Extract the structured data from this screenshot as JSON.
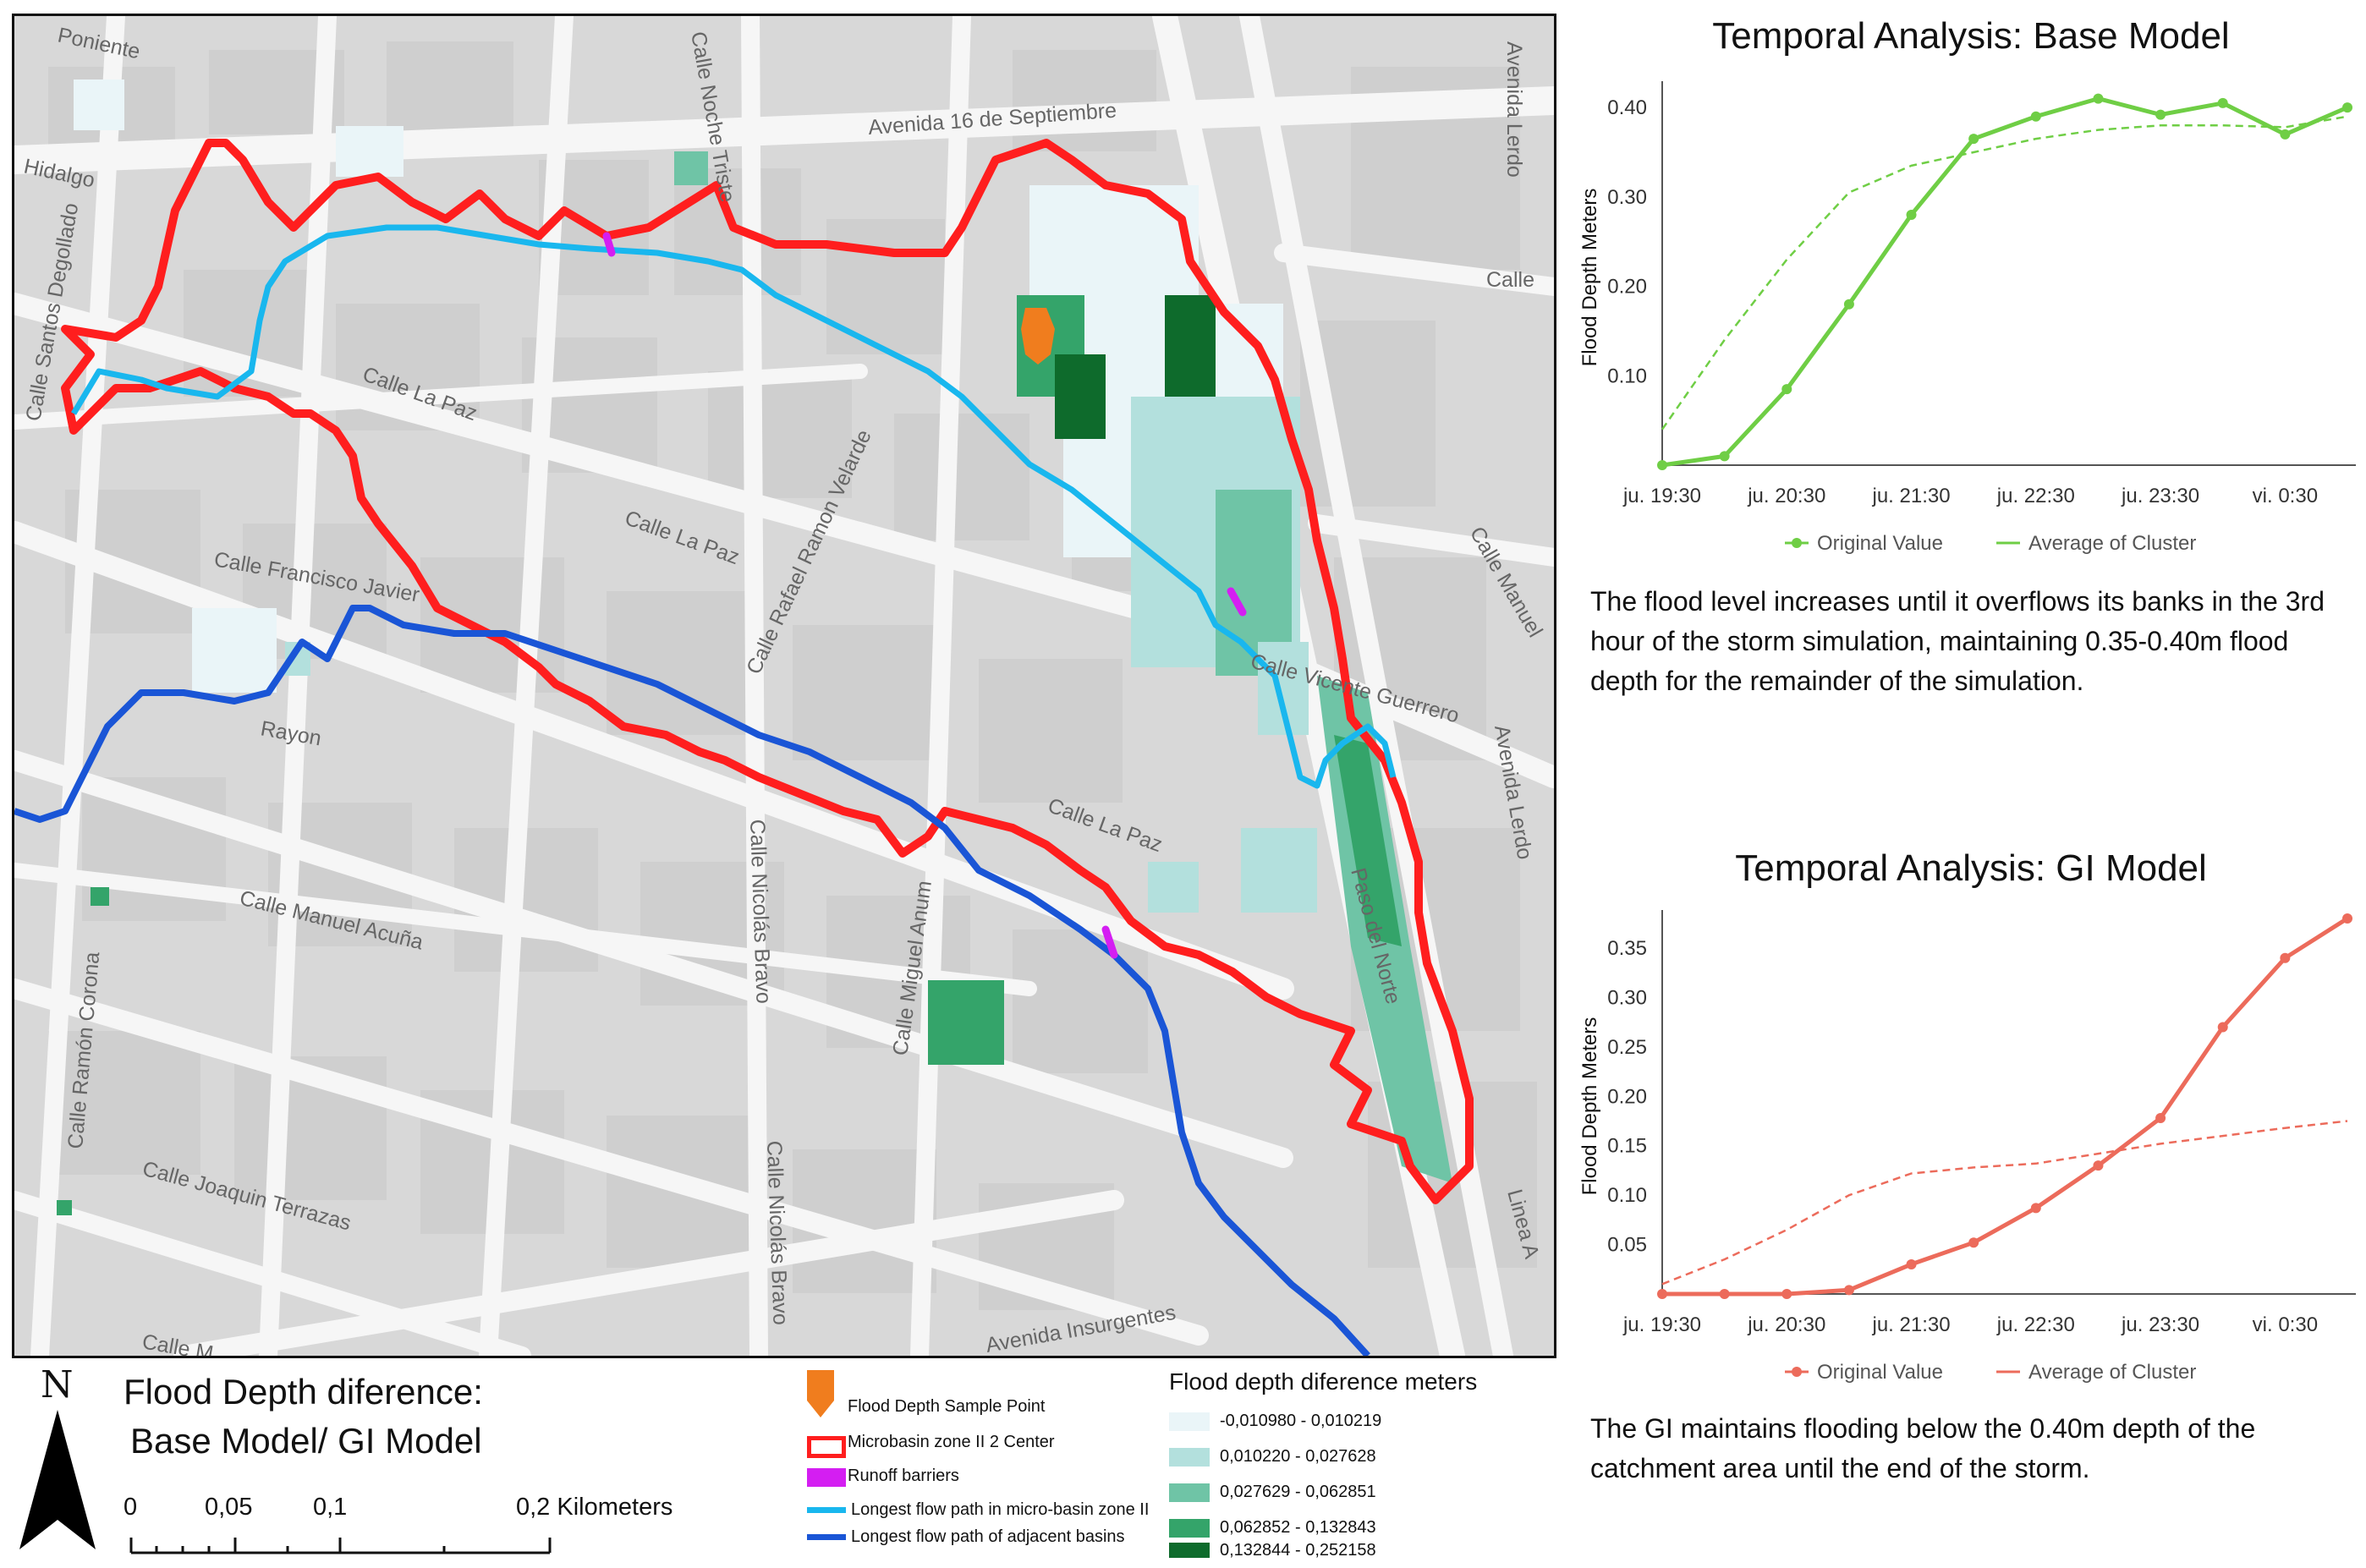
{
  "map": {
    "streets": [
      {
        "name": "Poniente"
      },
      {
        "name": "Calle Noche Triste"
      },
      {
        "name": "Avenida 16 de Septiembre"
      },
      {
        "name": "Avenida Lerdo"
      },
      {
        "name": "Hidalgo"
      },
      {
        "name": "Calle"
      },
      {
        "name": "Calle Santos Degollado"
      },
      {
        "name": "Calle La Paz"
      },
      {
        "name": "Calle La Paz"
      },
      {
        "name": "Calle Rafael Ramon Velarde"
      },
      {
        "name": "Calle Francisco Javier"
      },
      {
        "name": "Calle Vicente Guerrero"
      },
      {
        "name": "Calle Manuel"
      },
      {
        "name": "Rayon"
      },
      {
        "name": "Avenida Lerdo"
      },
      {
        "name": "Calle La Paz"
      },
      {
        "name": "Calle Manuel Acuña"
      },
      {
        "name": "Calle Nicolás Bravo"
      },
      {
        "name": "Calle Miguel Anum"
      },
      {
        "name": "Paso del Norte"
      },
      {
        "name": "Calle Ramón Corona"
      },
      {
        "name": "Calle Nicolás Bravo"
      },
      {
        "name": "Calle Joaquin Terrazas"
      },
      {
        "name": "Linea A"
      },
      {
        "name": "Avenida Insurgentes"
      },
      {
        "name": "Calle M"
      }
    ],
    "title_line1": "Flood Depth diference:",
    "title_line2": "Base Model/ GI Model",
    "north_letter": "N",
    "scale": {
      "labels": [
        "0",
        "0,05",
        "0,1",
        "0,2 Kilometers"
      ]
    }
  },
  "legend": {
    "items": [
      {
        "label": "Flood Depth Sample Point",
        "color": "#f07d1e"
      },
      {
        "label": "Microbasin zone II 2 Center",
        "color": "#ff1e1e"
      },
      {
        "label": "Runoff barriers",
        "color": "#d41ef2"
      },
      {
        "label": "Longest flow path in micro-basin zone II",
        "color": "#19b7ee"
      },
      {
        "label": "Longest flow path of adjacent basins",
        "color": "#1a55d6"
      }
    ],
    "depth_title": "Flood depth diference meters",
    "depth_classes": [
      {
        "label": "-0,010980 - 0,010219",
        "color": "#eaf5f8"
      },
      {
        "label": "0,010220 - 0,027628",
        "color": "#b3e0dd"
      },
      {
        "label": "0,027629 - 0,062851",
        "color": "#6fc4a6"
      },
      {
        "label": "0,062852 - 0,132843",
        "color": "#34a46a"
      },
      {
        "label": "0,132844 - 0,252158",
        "color": "#0e6b2c"
      }
    ]
  },
  "base_panel": {
    "title": "Temporal Analysis: Base Model",
    "description": "The flood level increases until it overflows its banks in the 3rd hour of the storm simulation, maintaining 0.35-0.40m flood depth for the remainder of the simulation."
  },
  "gi_panel": {
    "title": "Temporal Analysis: GI Model",
    "description": "The GI maintains flooding below the 0.40m depth of the catchment area until the end of the storm."
  },
  "chart_data": [
    {
      "type": "line",
      "title": "Temporal Analysis: Base Model",
      "ylabel": "Flood Depth Meters",
      "xlabel": "",
      "x_tick_labels": [
        "ju. 19:30",
        "ju. 20:30",
        "ju. 21:30",
        "ju. 22:30",
        "ju. 23:30",
        "vi. 0:30"
      ],
      "y_ticks": [
        0.1,
        0.2,
        0.3,
        0.4
      ],
      "y_tick_labels": [
        "0.10",
        "0.20",
        "0.30",
        "0.40"
      ],
      "ylim": [
        0,
        0.42
      ],
      "x_hours": [
        0,
        0.5,
        1,
        1.5,
        2,
        2.5,
        3,
        3.5,
        4,
        4.5,
        5,
        5.5
      ],
      "series": [
        {
          "name": "Original Value",
          "style": "solid-markers",
          "color": "#6fce45",
          "values": [
            0.0,
            0.01,
            0.085,
            0.18,
            0.28,
            0.365,
            0.39,
            0.41,
            0.392,
            0.405,
            0.37,
            0.4
          ]
        },
        {
          "name": "Average of Cluster",
          "style": "dashed",
          "color": "#6fce45",
          "values": [
            0.04,
            0.14,
            0.23,
            0.305,
            0.335,
            0.35,
            0.365,
            0.375,
            0.38,
            0.38,
            0.378,
            0.39
          ]
        }
      ],
      "legend_position": "bottom",
      "grid": false
    },
    {
      "type": "line",
      "title": "Temporal Analysis: GI Model",
      "ylabel": "Flood Depth Meters",
      "xlabel": "",
      "x_tick_labels": [
        "ju. 19:30",
        "ju. 20:30",
        "ju. 21:30",
        "ju. 22:30",
        "ju. 23:30",
        "vi. 0:30"
      ],
      "y_ticks": [
        0.05,
        0.1,
        0.15,
        0.2,
        0.25,
        0.3,
        0.35
      ],
      "y_tick_labels": [
        "0.05",
        "0.10",
        "0.15",
        "0.20",
        "0.25",
        "0.30",
        "0.35"
      ],
      "ylim": [
        0,
        0.38
      ],
      "x_hours": [
        0,
        0.5,
        1,
        1.5,
        2,
        2.5,
        3,
        3.5,
        4,
        4.5,
        5,
        5.5
      ],
      "series": [
        {
          "name": "Original Value",
          "style": "solid-markers",
          "color": "#ec6b5b",
          "values": [
            0.0,
            0.0,
            0.0,
            0.004,
            0.03,
            0.052,
            0.087,
            0.13,
            0.178,
            0.27,
            0.34,
            0.38
          ]
        },
        {
          "name": "Average of Cluster",
          "style": "dashed",
          "color": "#ec6b5b",
          "values": [
            0.01,
            0.035,
            0.065,
            0.1,
            0.122,
            0.128,
            0.132,
            0.142,
            0.152,
            0.16,
            0.168,
            0.175
          ]
        }
      ],
      "legend_position": "bottom",
      "grid": false
    }
  ]
}
